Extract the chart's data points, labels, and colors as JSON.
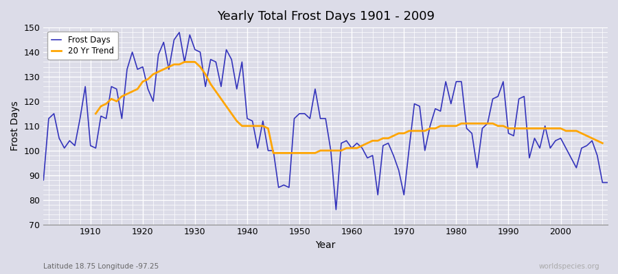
{
  "title": "Yearly Total Frost Days 1901 - 2009",
  "xlabel": "Year",
  "ylabel": "Frost Days",
  "xlim": [
    1901,
    2009
  ],
  "ylim": [
    70,
    150
  ],
  "yticks": [
    70,
    80,
    90,
    100,
    110,
    120,
    130,
    140,
    150
  ],
  "xticks": [
    1910,
    1920,
    1930,
    1940,
    1950,
    1960,
    1970,
    1980,
    1990,
    2000
  ],
  "frost_color": "#3333bb",
  "trend_color": "#ffa500",
  "bg_color": "#dcdce8",
  "plot_bg_color": "#dcdce8",
  "grid_color": "#ffffff",
  "footnote_left": "Latitude 18.75 Longitude -97.25",
  "footnote_right": "worldspecies.org",
  "frost_days": [
    88,
    113,
    115,
    105,
    101,
    104,
    102,
    113,
    126,
    102,
    101,
    114,
    113,
    126,
    125,
    113,
    133,
    140,
    133,
    134,
    125,
    120,
    139,
    144,
    133,
    145,
    148,
    136,
    147,
    141,
    140,
    126,
    137,
    136,
    126,
    141,
    137,
    125,
    136,
    113,
    112,
    101,
    112,
    100,
    100,
    85,
    86,
    85,
    113,
    115,
    115,
    113,
    125,
    113,
    113,
    100,
    76,
    103,
    104,
    101,
    103,
    101,
    97,
    98,
    82,
    102,
    103,
    98,
    92,
    82,
    101,
    119,
    118,
    100,
    110,
    117,
    116,
    128,
    119,
    128,
    128,
    109,
    107,
    93,
    109,
    111,
    121,
    122,
    128,
    107,
    106,
    121,
    122,
    97,
    105,
    101,
    110,
    101,
    104,
    105,
    101,
    97,
    93,
    101,
    102,
    104,
    98,
    87,
    87
  ],
  "trend_start_year": 1911,
  "trend_days": [
    115,
    118,
    119,
    121,
    120,
    122,
    123,
    124,
    125,
    128,
    129,
    131,
    132,
    133,
    134,
    135,
    135,
    136,
    136,
    136,
    134,
    131,
    127,
    124,
    121,
    118,
    115,
    112,
    110,
    110,
    110,
    110,
    110,
    109,
    99,
    99,
    99,
    99,
    99,
    99,
    99,
    99,
    99,
    100,
    100,
    100,
    100,
    100,
    101,
    101,
    101,
    102,
    103,
    104,
    104,
    105,
    105,
    106,
    107,
    107,
    108,
    108,
    108,
    108,
    109,
    109,
    110,
    110,
    110,
    110,
    111,
    111,
    111,
    111,
    111,
    111,
    111,
    110,
    110,
    109,
    109,
    109,
    109,
    109,
    109,
    109,
    109,
    109,
    109,
    109,
    108,
    108,
    108,
    107,
    106,
    105,
    104,
    103
  ]
}
